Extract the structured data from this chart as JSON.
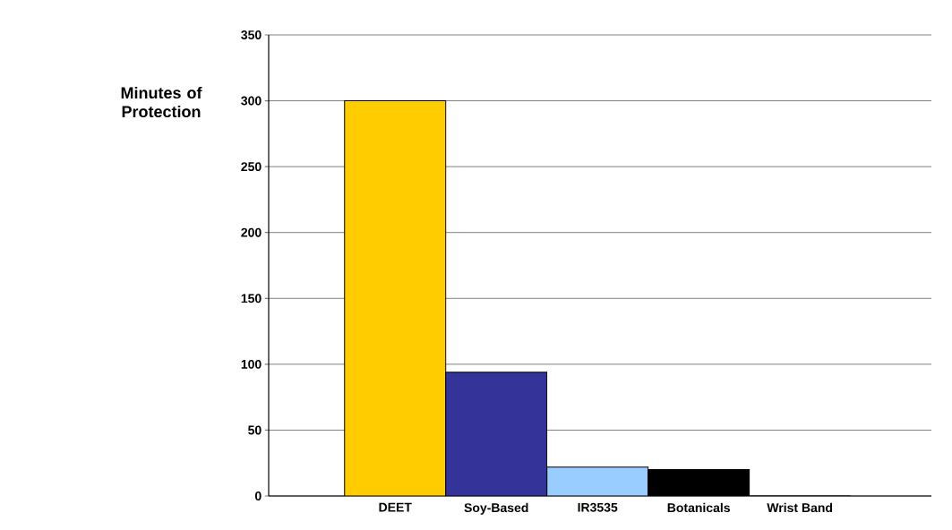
{
  "chart_data": {
    "type": "bar",
    "ylabel": "Minutes of Protection",
    "categories": [
      "DEET",
      "Soy-Based",
      "IR3535",
      "Botanicals",
      "Wrist Band"
    ],
    "values": [
      300,
      94,
      22,
      20,
      0
    ],
    "colors": [
      "#ffcc00",
      "#333399",
      "#99ccff",
      "#000000",
      "#606060"
    ],
    "ylim": [
      0,
      350
    ],
    "yticks": [
      0,
      50,
      100,
      150,
      200,
      250,
      300,
      350
    ],
    "grid": "y"
  }
}
